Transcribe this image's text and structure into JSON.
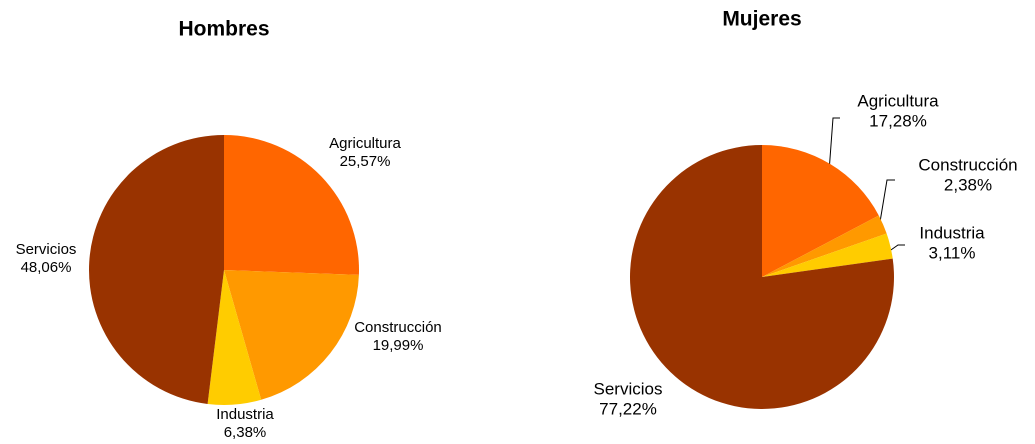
{
  "chart_data": [
    {
      "type": "pie",
      "title": "Hombres",
      "categories": [
        "Agricultura",
        "Construcción",
        "Industria",
        "Servicios"
      ],
      "values": [
        25.57,
        19.99,
        6.38,
        48.06
      ],
      "value_labels": [
        "25,57%",
        "19,99%",
        "6,38%",
        "48,06%"
      ],
      "colors": [
        "#ff6600",
        "#ff9900",
        "#ffcc00",
        "#993300"
      ]
    },
    {
      "type": "pie",
      "title": "Mujeres",
      "categories": [
        "Agricultura",
        "Construcción",
        "Industria",
        "Servicios"
      ],
      "values": [
        17.28,
        2.38,
        3.11,
        77.22
      ],
      "value_labels": [
        "17,28%",
        "2,38%",
        "3,11%",
        "77,22%"
      ],
      "colors": [
        "#ff6600",
        "#ff9900",
        "#ffcc00",
        "#993300"
      ]
    }
  ]
}
